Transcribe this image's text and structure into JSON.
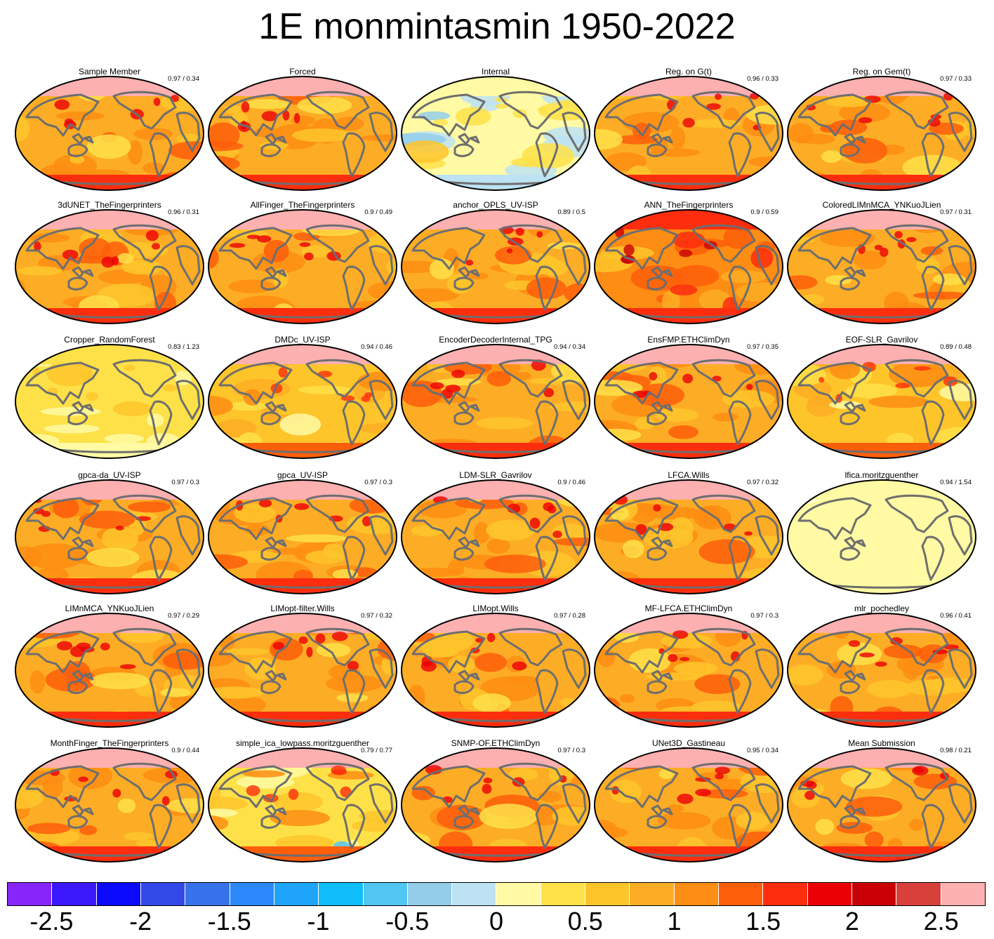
{
  "title": "1E monmintasmin 1950-2022",
  "panels": [
    {
      "name": "Sample Member",
      "stats": "0.97 / 0.34",
      "pattern": "warm"
    },
    {
      "name": "Forced",
      "stats": "",
      "pattern": "warm"
    },
    {
      "name": "Internal",
      "stats": "",
      "pattern": "internal"
    },
    {
      "name": "Reg. on G(t)",
      "stats": "0.96 / 0.33",
      "pattern": "warm"
    },
    {
      "name": "Reg. on Gem(t)",
      "stats": "0.97 / 0.33",
      "pattern": "warm"
    },
    {
      "name": "3dUNET_TheFingerprinters",
      "stats": "0.96 / 0.31",
      "pattern": "warm"
    },
    {
      "name": "AllFinger_TheFingerprinters",
      "stats": "0.9 / 0.49",
      "pattern": "warm"
    },
    {
      "name": "anchor_OPLS_UV-ISP",
      "stats": "0.89 / 0.5",
      "pattern": "warm"
    },
    {
      "name": "ANN_TheFingerprinters",
      "stats": "0.9 / 0.59",
      "pattern": "hot"
    },
    {
      "name": "ColoredLIMnMCA_YNKuoJLien",
      "stats": "0.97 / 0.31",
      "pattern": "warm"
    },
    {
      "name": "Cropper_RandomForest",
      "stats": "0.83 / 1.23",
      "pattern": "pale"
    },
    {
      "name": "DMDc_UV-ISP",
      "stats": "0.94 / 0.46",
      "pattern": "mild"
    },
    {
      "name": "EncoderDecoderInternal_TPG",
      "stats": "0.94 / 0.34",
      "pattern": "warm"
    },
    {
      "name": "EnsFMP.ETHClimDyn",
      "stats": "0.97 / 0.35",
      "pattern": "warm"
    },
    {
      "name": "EOF-SLR_Gavrilov",
      "stats": "0.89 / 0.48",
      "pattern": "mild"
    },
    {
      "name": "gpca-da_UV-ISP",
      "stats": "0.97 / 0.3",
      "pattern": "warm"
    },
    {
      "name": "gpca_UV-ISP",
      "stats": "0.97 / 0.3",
      "pattern": "warm"
    },
    {
      "name": "LDM-SLR_Gavrilov",
      "stats": "0.9 / 0.46",
      "pattern": "warm"
    },
    {
      "name": "LFCA.Wills",
      "stats": "0.97 / 0.32",
      "pattern": "warm"
    },
    {
      "name": "lfica.moritzguenther",
      "stats": "0.94 / 1.54",
      "pattern": "verypale"
    },
    {
      "name": "LIMnMCA_YNKuoJLien",
      "stats": "0.97 / 0.29",
      "pattern": "warm"
    },
    {
      "name": "LIMopt-filter.Wills",
      "stats": "0.97 / 0.32",
      "pattern": "warm"
    },
    {
      "name": "LIMopt.Wills",
      "stats": "0.97 / 0.28",
      "pattern": "warm"
    },
    {
      "name": "MF-LFCA.ETHClimDyn",
      "stats": "0.97 / 0.3",
      "pattern": "warm"
    },
    {
      "name": "mlr_pochedley",
      "stats": "0.96 / 0.41",
      "pattern": "warm"
    },
    {
      "name": "MonthFinger_TheFingerprinters",
      "stats": "0.9 / 0.44",
      "pattern": "warm"
    },
    {
      "name": "simple_ica_lowpass.moritzguenther",
      "stats": "0.79 / 0.77",
      "pattern": "mixed"
    },
    {
      "name": "SNMP-OF.ETHClimDyn",
      "stats": "0.97 / 0.3",
      "pattern": "warm"
    },
    {
      "name": "UNet3D_Gastineau",
      "stats": "0.95 / 0.34",
      "pattern": "warm"
    },
    {
      "name": "Mean Submission",
      "stats": "0.98 / 0.21",
      "pattern": "warm"
    }
  ],
  "colorbar": {
    "colors": [
      "#8726fb",
      "#3b17fb",
      "#0b0afc",
      "#3249e8",
      "#3872eb",
      "#2d88fc",
      "#1ea4fb",
      "#10befb",
      "#52c6f3",
      "#93cdea",
      "#bde2f3",
      "#fffaa3",
      "#fee149",
      "#fec52b",
      "#fdad25",
      "#fd8d13",
      "#fd5e0a",
      "#fc2e0e",
      "#eb0006",
      "#c90006",
      "#d8403c",
      "#fcb0b0"
    ],
    "labels": [
      "-2.5",
      "-2",
      "-1.5",
      "-1",
      "-0.5",
      "0",
      "0.5",
      "1",
      "1.5",
      "2",
      "2.5"
    ]
  }
}
